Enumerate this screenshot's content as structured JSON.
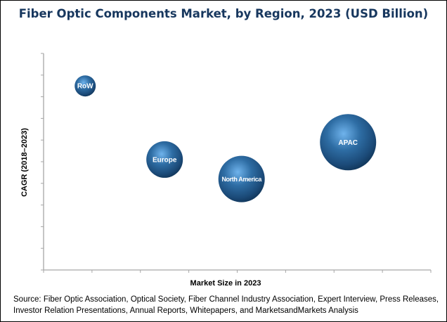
{
  "chart_data": {
    "type": "bubble",
    "title": "Fiber Optic Components Market, by Region, 2023 (USD Billion)",
    "xlabel": "Market Size in 2023",
    "ylabel": "CAGR (2018–2023)",
    "xlim": [
      0,
      8
    ],
    "ylim": [
      0,
      10
    ],
    "tick_labels_shown": false,
    "grid": false,
    "legend": "none",
    "bubble_color": "#2e6da4",
    "points": [
      {
        "label": "RoW",
        "x": 0.86,
        "y": 8.5,
        "size": 15
      },
      {
        "label": "Europe",
        "x": 2.5,
        "y": 5.1,
        "size": 26
      },
      {
        "label": "North America",
        "x": 4.09,
        "y": 4.2,
        "size": 33
      },
      {
        "label": "APAC",
        "x": 6.29,
        "y": 5.9,
        "size": 40
      }
    ]
  },
  "source": "Source: Fiber Optic Association, Optical Society, Fiber Channel Industry Association, Expert Interview, Press Releases, Investor Relation Presentations, Annual Reports, Whitepapers, and MarketsandMarkets Analysis"
}
